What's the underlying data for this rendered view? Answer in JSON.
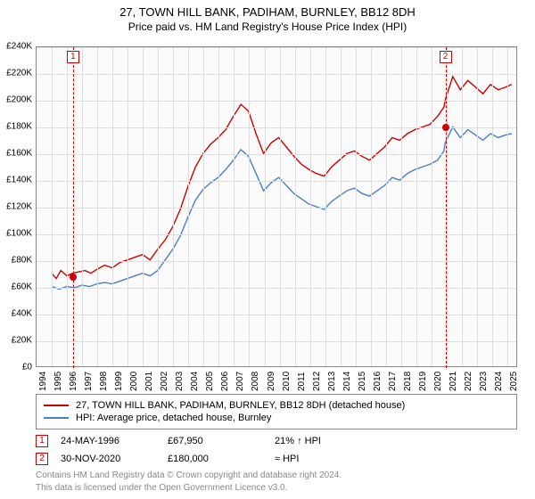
{
  "title": "27, TOWN HILL BANK, PADIHAM, BURNLEY, BB12 8DH",
  "subtitle": "Price paid vs. HM Land Registry's House Price Index (HPI)",
  "chart": {
    "type": "line",
    "background_color": "#fbfbfb",
    "grid_color": "#dddddd",
    "border_color": "#888888",
    "y": {
      "min": 0,
      "max": 240000,
      "step": 20000,
      "labels": [
        "£0",
        "£20K",
        "£40K",
        "£60K",
        "£80K",
        "£100K",
        "£120K",
        "£140K",
        "£160K",
        "£180K",
        "£200K",
        "£220K",
        "£240K"
      ]
    },
    "x": {
      "min": 1994,
      "max": 2025.7,
      "labels": [
        "1994",
        "1995",
        "1996",
        "1997",
        "1998",
        "1999",
        "2000",
        "2001",
        "2002",
        "2003",
        "2004",
        "2005",
        "2006",
        "2007",
        "2008",
        "2009",
        "2010",
        "2011",
        "2012",
        "2013",
        "2014",
        "2015",
        "2016",
        "2017",
        "2018",
        "2019",
        "2020",
        "2021",
        "2022",
        "2023",
        "2024",
        "2025"
      ]
    },
    "series": [
      {
        "key": "red",
        "label": "27, TOWN HILL BANK, PADIHAM, BURNLEY, BB12 8DH (detached house)",
        "color": "#cc0000",
        "width": 1.4,
        "data": [
          [
            1995.0,
            70000
          ],
          [
            1995.3,
            66000
          ],
          [
            1995.6,
            72000
          ],
          [
            1996.0,
            68000
          ],
          [
            1996.4,
            70000
          ],
          [
            1996.8,
            71000
          ],
          [
            1997.2,
            72000
          ],
          [
            1997.6,
            70000
          ],
          [
            1998.0,
            73000
          ],
          [
            1998.5,
            76000
          ],
          [
            1999.0,
            74000
          ],
          [
            1999.5,
            78000
          ],
          [
            2000.0,
            80000
          ],
          [
            2000.5,
            82000
          ],
          [
            2001.0,
            84000
          ],
          [
            2001.5,
            80000
          ],
          [
            2002.0,
            88000
          ],
          [
            2002.5,
            95000
          ],
          [
            2003.0,
            105000
          ],
          [
            2003.5,
            118000
          ],
          [
            2004.0,
            135000
          ],
          [
            2004.5,
            150000
          ],
          [
            2005.0,
            160000
          ],
          [
            2005.5,
            167000
          ],
          [
            2006.0,
            172000
          ],
          [
            2006.5,
            178000
          ],
          [
            2007.0,
            188000
          ],
          [
            2007.5,
            197000
          ],
          [
            2008.0,
            192000
          ],
          [
            2008.5,
            175000
          ],
          [
            2009.0,
            160000
          ],
          [
            2009.5,
            168000
          ],
          [
            2010.0,
            172000
          ],
          [
            2010.5,
            165000
          ],
          [
            2011.0,
            158000
          ],
          [
            2011.5,
            152000
          ],
          [
            2012.0,
            148000
          ],
          [
            2012.5,
            145000
          ],
          [
            2013.0,
            143000
          ],
          [
            2013.5,
            150000
          ],
          [
            2014.0,
            155000
          ],
          [
            2014.5,
            160000
          ],
          [
            2015.0,
            162000
          ],
          [
            2015.5,
            158000
          ],
          [
            2016.0,
            155000
          ],
          [
            2016.5,
            160000
          ],
          [
            2017.0,
            165000
          ],
          [
            2017.5,
            172000
          ],
          [
            2018.0,
            170000
          ],
          [
            2018.5,
            175000
          ],
          [
            2019.0,
            178000
          ],
          [
            2019.5,
            180000
          ],
          [
            2020.0,
            182000
          ],
          [
            2020.5,
            188000
          ],
          [
            2020.92,
            195000
          ],
          [
            2021.0,
            200000
          ],
          [
            2021.5,
            218000
          ],
          [
            2022.0,
            208000
          ],
          [
            2022.5,
            215000
          ],
          [
            2023.0,
            210000
          ],
          [
            2023.5,
            205000
          ],
          [
            2024.0,
            212000
          ],
          [
            2024.5,
            208000
          ],
          [
            2025.0,
            210000
          ],
          [
            2025.4,
            212000
          ]
        ]
      },
      {
        "key": "blue",
        "label": "HPI: Average price, detached house, Burnley",
        "color": "#4a7fc2",
        "width": 1.4,
        "data": [
          [
            1995.0,
            60000
          ],
          [
            1995.5,
            58000
          ],
          [
            1996.0,
            60000
          ],
          [
            1996.5,
            59000
          ],
          [
            1997.0,
            61000
          ],
          [
            1997.5,
            60000
          ],
          [
            1998.0,
            62000
          ],
          [
            1998.5,
            63000
          ],
          [
            1999.0,
            62000
          ],
          [
            1999.5,
            64000
          ],
          [
            2000.0,
            66000
          ],
          [
            2000.5,
            68000
          ],
          [
            2001.0,
            70000
          ],
          [
            2001.5,
            68000
          ],
          [
            2002.0,
            72000
          ],
          [
            2002.5,
            80000
          ],
          [
            2003.0,
            88000
          ],
          [
            2003.5,
            98000
          ],
          [
            2004.0,
            112000
          ],
          [
            2004.5,
            125000
          ],
          [
            2005.0,
            133000
          ],
          [
            2005.5,
            138000
          ],
          [
            2006.0,
            142000
          ],
          [
            2006.5,
            148000
          ],
          [
            2007.0,
            155000
          ],
          [
            2007.5,
            163000
          ],
          [
            2008.0,
            158000
          ],
          [
            2008.5,
            145000
          ],
          [
            2009.0,
            132000
          ],
          [
            2009.5,
            138000
          ],
          [
            2010.0,
            142000
          ],
          [
            2010.5,
            136000
          ],
          [
            2011.0,
            130000
          ],
          [
            2011.5,
            126000
          ],
          [
            2012.0,
            122000
          ],
          [
            2012.5,
            120000
          ],
          [
            2013.0,
            118000
          ],
          [
            2013.5,
            124000
          ],
          [
            2014.0,
            128000
          ],
          [
            2014.5,
            132000
          ],
          [
            2015.0,
            134000
          ],
          [
            2015.5,
            130000
          ],
          [
            2016.0,
            128000
          ],
          [
            2016.5,
            132000
          ],
          [
            2017.0,
            136000
          ],
          [
            2017.5,
            142000
          ],
          [
            2018.0,
            140000
          ],
          [
            2018.5,
            145000
          ],
          [
            2019.0,
            148000
          ],
          [
            2019.5,
            150000
          ],
          [
            2020.0,
            152000
          ],
          [
            2020.5,
            155000
          ],
          [
            2020.92,
            162000
          ],
          [
            2021.0,
            168000
          ],
          [
            2021.5,
            180000
          ],
          [
            2022.0,
            172000
          ],
          [
            2022.5,
            178000
          ],
          [
            2023.0,
            174000
          ],
          [
            2023.5,
            170000
          ],
          [
            2024.0,
            175000
          ],
          [
            2024.5,
            172000
          ],
          [
            2025.0,
            174000
          ],
          [
            2025.4,
            175000
          ]
        ]
      }
    ],
    "markers": [
      {
        "n": "1",
        "year": 1996.4,
        "price": 67950,
        "color": "#cc0000"
      },
      {
        "n": "2",
        "year": 2020.92,
        "price": 180000,
        "color": "#cc0000"
      }
    ]
  },
  "legend": {
    "series1": "27, TOWN HILL BANK, PADIHAM, BURNLEY, BB12 8DH (detached house)",
    "series2": "HPI: Average price, detached house, Burnley"
  },
  "sales": [
    {
      "n": "1",
      "color": "#cc0000",
      "date": "24-MAY-1996",
      "price": "£67,950",
      "delta": "21% ↑ HPI"
    },
    {
      "n": "2",
      "color": "#cc0000",
      "date": "30-NOV-2020",
      "price": "£180,000",
      "delta": "≈ HPI"
    }
  ],
  "footer1": "Contains HM Land Registry data © Crown copyright and database right 2024.",
  "footer2": "This data is licensed under the Open Government Licence v3.0."
}
